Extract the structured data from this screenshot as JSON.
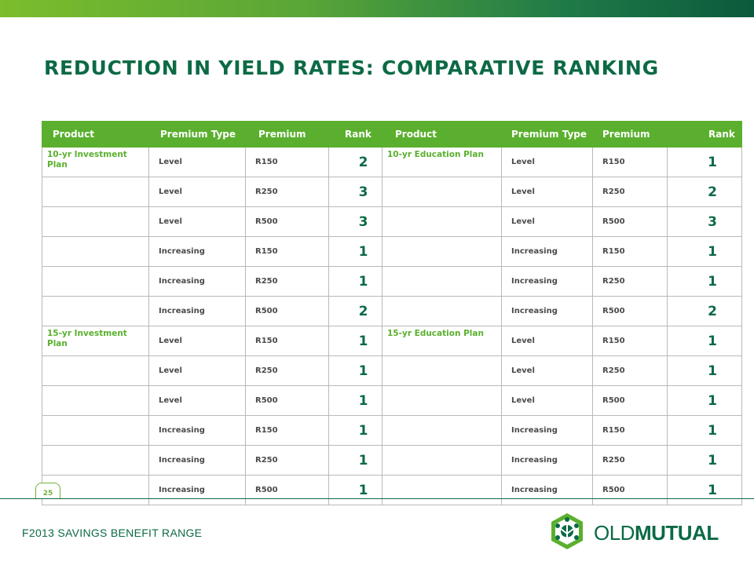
{
  "title": "REDUCTION IN YIELD RATES: COMPARATIVE RANKING",
  "headers": [
    "Product",
    "Premium Type",
    "Premium",
    "Rank",
    "Product",
    "Premium Type",
    "Premium",
    "Rank"
  ],
  "rows": [
    {
      "lp": "10-yr Investment Plan",
      "lt": "Level",
      "lpr": "R150",
      "lr": "2",
      "rp": "10-yr Education Plan",
      "rt": "Level",
      "rpr": "R150",
      "rr": "1"
    },
    {
      "lp": "",
      "lt": "Level",
      "lpr": "R250",
      "lr": "3",
      "rp": "",
      "rt": "Level",
      "rpr": "R250",
      "rr": "2"
    },
    {
      "lp": "",
      "lt": "Level",
      "lpr": "R500",
      "lr": "3",
      "rp": "",
      "rt": "Level",
      "rpr": "R500",
      "rr": "3"
    },
    {
      "lp": "",
      "lt": "Increasing",
      "lpr": "R150",
      "lr": "1",
      "rp": "",
      "rt": "Increasing",
      "rpr": "R150",
      "rr": "1"
    },
    {
      "lp": "",
      "lt": "Increasing",
      "lpr": "R250",
      "lr": "1",
      "rp": "",
      "rt": "Increasing",
      "rpr": "R250",
      "rr": "1"
    },
    {
      "lp": "",
      "lt": "Increasing",
      "lpr": "R500",
      "lr": "2",
      "rp": "",
      "rt": "Increasing",
      "rpr": "R500",
      "rr": "2"
    },
    {
      "lp": "15-yr Investment Plan",
      "lt": "Level",
      "lpr": "R150",
      "lr": "1",
      "rp": "15-yr Education Plan",
      "rt": "Level",
      "rpr": "R150",
      "rr": "1"
    },
    {
      "lp": "",
      "lt": "Level",
      "lpr": "R250",
      "lr": "1",
      "rp": "",
      "rt": "Level",
      "rpr": "R250",
      "rr": "1"
    },
    {
      "lp": "",
      "lt": "Level",
      "lpr": "R500",
      "lr": "1",
      "rp": "",
      "rt": "Level",
      "rpr": "R500",
      "rr": "1"
    },
    {
      "lp": "",
      "lt": "Increasing",
      "lpr": "R150",
      "lr": "1",
      "rp": "",
      "rt": "Increasing",
      "rpr": "R150",
      "rr": "1"
    },
    {
      "lp": "",
      "lt": "Increasing",
      "lpr": "R250",
      "lr": "1",
      "rp": "",
      "rt": "Increasing",
      "rpr": "R250",
      "rr": "1"
    },
    {
      "lp": "",
      "lt": "Increasing",
      "lpr": "R500",
      "lr": "1",
      "rp": "",
      "rt": "Increasing",
      "rpr": "R500",
      "rr": "1"
    }
  ],
  "page_number": "25",
  "footer": "F2013 SAVINGS BENEFIT RANGE",
  "logo": {
    "text_light": "OLD",
    "text_bold": "MUTUAL",
    "icon": "old-mutual-tree-icon"
  },
  "colors": {
    "accent_green": "#5ab02e",
    "dark_green": "#0c6a45",
    "border": "#b9b9b9"
  }
}
